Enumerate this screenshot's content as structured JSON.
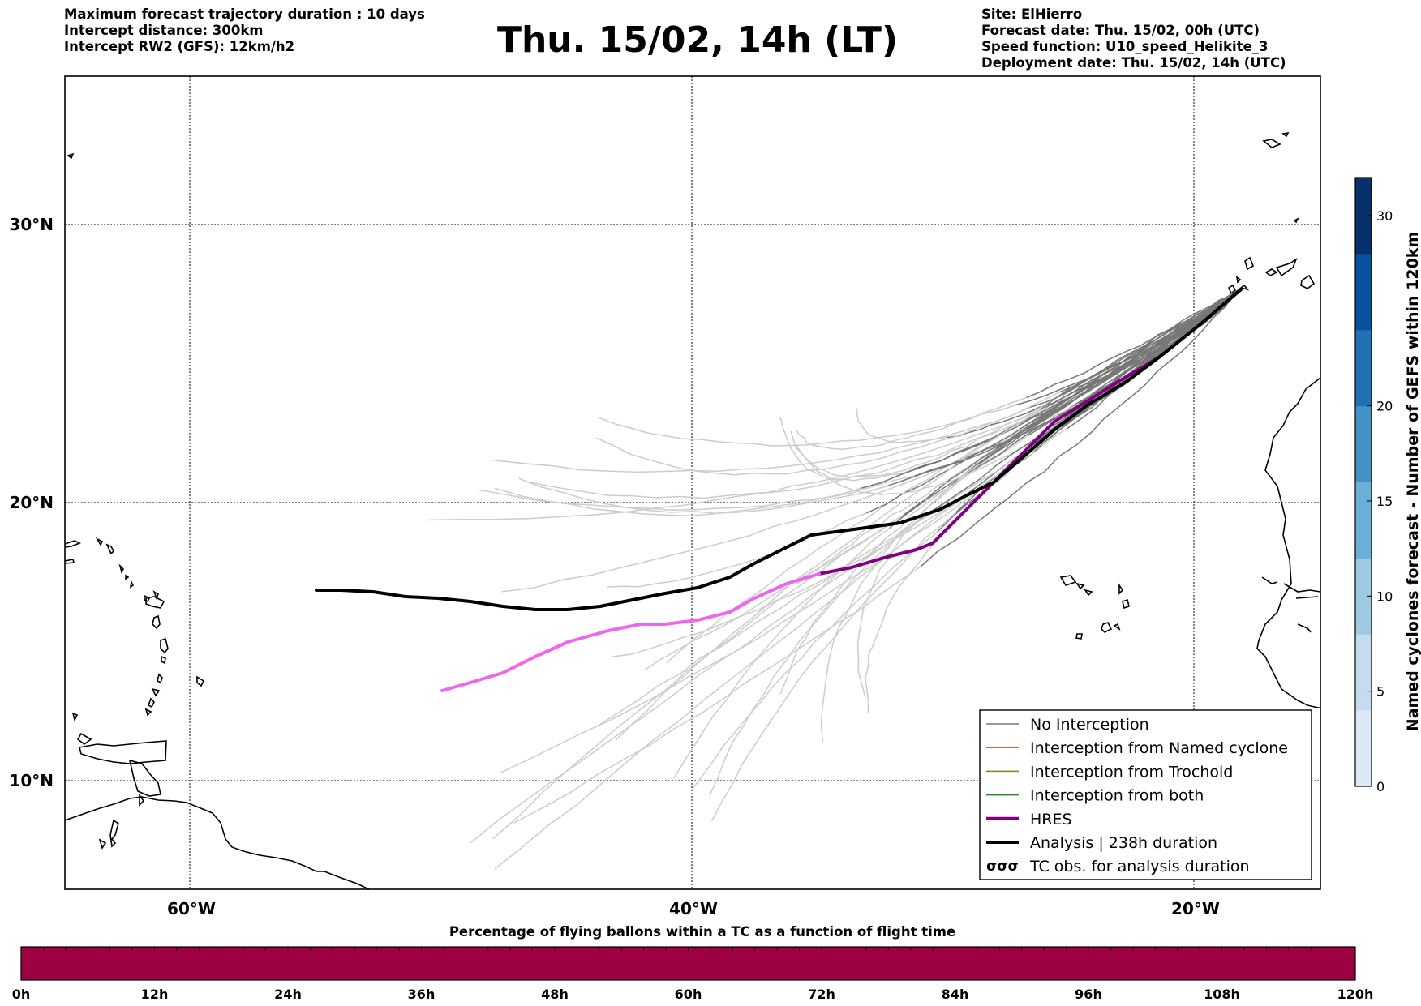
{
  "header": {
    "left": [
      "Maximum forecast trajectory duration : 10 days",
      "Intercept distance: 300km",
      "Intercept RW2 (GFS):  12km/h2"
    ],
    "title": "Thu. 15/02, 14h (LT)",
    "right": [
      "Site: ElHierro",
      "Forecast date: Thu. 15/02, 00h (UTC)",
      "Speed function: U10_speed_Helikite_3",
      "Deployment date: Thu. 15/02, 14h (UTC)"
    ]
  },
  "map": {
    "lon_range": [
      -65,
      15
    ],
    "lat_range": [
      5.5,
      34.8
    ],
    "lat_ticks": [
      {
        "value": 30,
        "label": "30°N"
      },
      {
        "value": 20,
        "label": "20°N"
      },
      {
        "value": 10,
        "label": "10°N"
      }
    ],
    "lon_ticks": [
      {
        "value": -60,
        "label": "60°W"
      },
      {
        "value": -40,
        "label": "40°W"
      },
      {
        "value": -20,
        "label": "20°W"
      }
    ],
    "grid": true,
    "colors": {
      "no_interception": "#777777",
      "named_cyclone": "#e8622a",
      "trochoid": "#808020",
      "both": "#228822",
      "hres": "#800080",
      "hres_late": "#ee66ee",
      "analysis": "#000000",
      "ensemble_late": "#cccccc"
    }
  },
  "legend": {
    "items": [
      {
        "label": "No Interception",
        "style": "no_interception"
      },
      {
        "label": "Interception from Named cyclone",
        "style": "named_cyclone"
      },
      {
        "label": "Interception from Trochoid",
        "style": "trochoid"
      },
      {
        "label": "Interception from both",
        "style": "both"
      },
      {
        "label": "HRES",
        "style": "hres"
      },
      {
        "label": "Analysis | 238h duration",
        "style": "analysis"
      },
      {
        "label": "TC obs. for analysis duration",
        "style": "tc_obs"
      }
    ]
  },
  "colorbar_right": {
    "label": "Named cyclones forecast - Number of GEFS within 120km",
    "ticks": [
      "0",
      "5",
      "10",
      "15",
      "20",
      "30"
    ],
    "colors": [
      "#dbe8f5",
      "#c6dbef",
      "#9ecae1",
      "#6baed6",
      "#4292c6",
      "#2171b5",
      "#08519c",
      "#08306b"
    ]
  },
  "time_bar": {
    "title": "Percentage of flying ballons within a TC as a function of flight time",
    "ticks": [
      "0h",
      "12h",
      "24h",
      "36h",
      "48h",
      "60h",
      "72h",
      "84h",
      "96h",
      "108h",
      "120h"
    ],
    "color": "#9e0142"
  }
}
